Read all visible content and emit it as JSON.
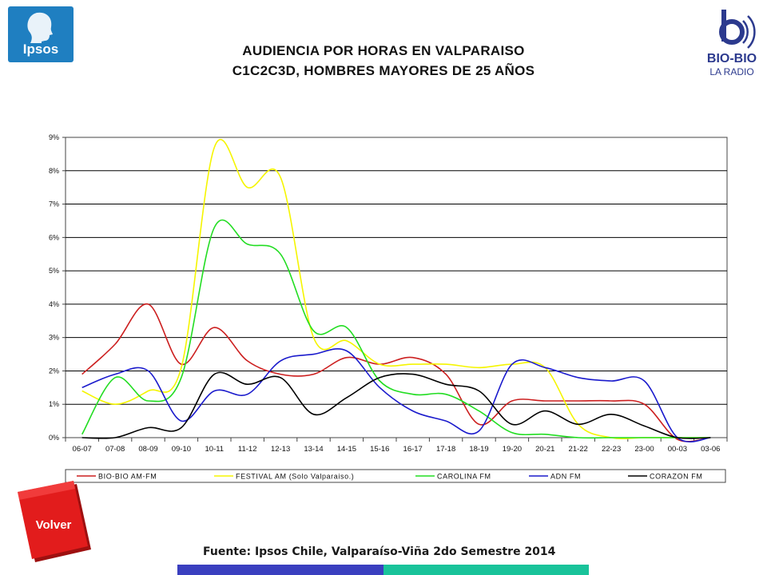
{
  "header": {
    "title_line1": "AUDIENCIA POR HORAS EN VALPARAISO",
    "title_line2": "C1C2C3D, HOMBRES MAYORES DE 25 AÑOS",
    "ipsos_logo": "Ipsos",
    "radio_logo_line1": "BIO-BIO",
    "radio_logo_line2": "LA RADIO"
  },
  "footer": {
    "source": "Fuente: Ipsos Chile, Valparaíso-Viña 2do Semestre 2014",
    "back_button": "Volver"
  },
  "chart_data": {
    "type": "line",
    "categories": [
      "06-07",
      "07-08",
      "08-09",
      "09-10",
      "10-11",
      "11-12",
      "12-13",
      "13-14",
      "14-15",
      "15-16",
      "16-17",
      "17-18",
      "18-19",
      "19-20",
      "20-21",
      "21-22",
      "22-23",
      "23-00",
      "00-03",
      "03-06"
    ],
    "ylim": [
      0,
      9
    ],
    "yticks": [
      "0%",
      "1%",
      "2%",
      "3%",
      "4%",
      "5%",
      "6%",
      "7%",
      "8%",
      "9%"
    ],
    "grid": true,
    "legend_position": "bottom",
    "series": [
      {
        "name": "BIO-BIO AM-FM",
        "color": "#cc1f1f",
        "values": [
          1.9,
          2.8,
          4.0,
          2.2,
          3.3,
          2.3,
          1.9,
          1.9,
          2.4,
          2.2,
          2.4,
          1.9,
          0.4,
          1.1,
          1.1,
          1.1,
          1.1,
          1.0,
          -0.05,
          0.0
        ]
      },
      {
        "name": "FESTIVAL AM (Solo Valparaiso.)",
        "color": "#f5f500",
        "values": [
          1.4,
          1.0,
          1.4,
          2.1,
          8.7,
          7.5,
          7.8,
          3.0,
          2.9,
          2.2,
          2.2,
          2.2,
          2.1,
          2.2,
          2.1,
          0.4,
          0.0,
          0.0,
          0.0,
          0.0
        ]
      },
      {
        "name": "CAROLINA FM",
        "color": "#22dd22",
        "values": [
          0.1,
          1.8,
          1.1,
          1.8,
          6.3,
          5.8,
          5.5,
          3.2,
          3.3,
          1.7,
          1.3,
          1.3,
          0.8,
          0.15,
          0.1,
          0.0,
          0.0,
          0.0,
          0.0,
          0.0
        ]
      },
      {
        "name": "ADN FM",
        "color": "#1a1acc",
        "values": [
          1.5,
          1.9,
          2.0,
          0.5,
          1.4,
          1.3,
          2.3,
          2.5,
          2.6,
          1.5,
          0.8,
          0.5,
          0.2,
          2.2,
          2.1,
          1.8,
          1.7,
          1.7,
          0.0,
          0.0
        ]
      },
      {
        "name": "CORAZON FM",
        "color": "#000000",
        "values": [
          0.0,
          0.0,
          0.3,
          0.3,
          1.9,
          1.6,
          1.8,
          0.7,
          1.2,
          1.8,
          1.9,
          1.6,
          1.4,
          0.4,
          0.8,
          0.4,
          0.7,
          0.35,
          0.0,
          0.0
        ]
      }
    ]
  }
}
